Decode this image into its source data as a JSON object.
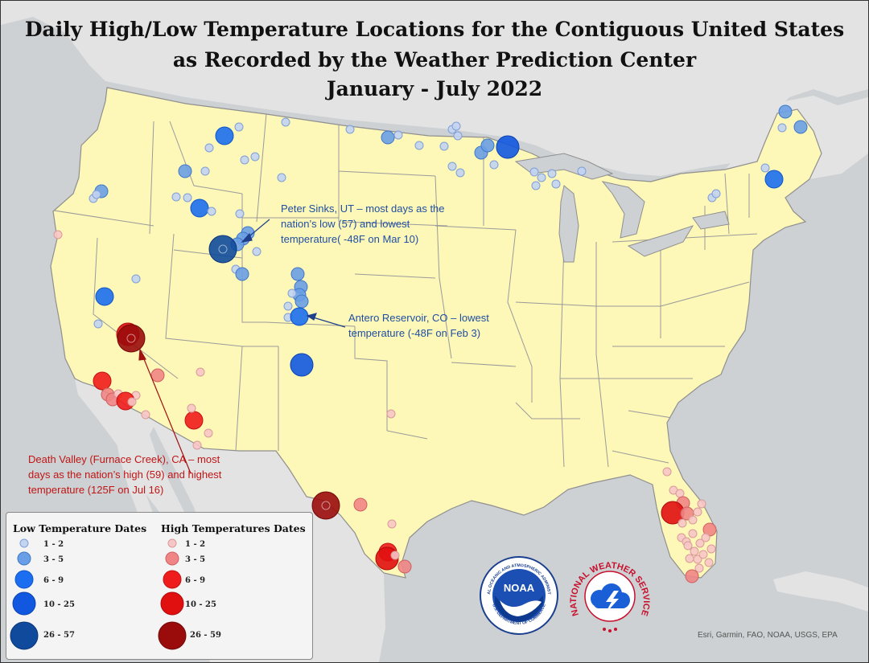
{
  "title": {
    "line1": "Daily High/Low Temperature Locations for the Contiguous United States",
    "line2": "as Recorded by the Weather Prediction Center",
    "line3": "January - July 2022"
  },
  "annotations": {
    "peter_sinks": [
      "Peter Sinks, UT – most days as the",
      "nation’s low (57) and lowest",
      "temperature( -48F on Mar 10)"
    ],
    "antero": [
      "Antero Reservoir, CO – lowest",
      "temperature (-48F on Feb 3)"
    ],
    "death_valley": [
      "Death Valley (Furnace Creek), CA – most",
      "days as the nation’s high (59) and highest",
      "temperature (125F on Jul 16)"
    ]
  },
  "legend": {
    "low_title": "Low Temperature Dates",
    "high_title": "High Temperatures Dates",
    "classes": [
      "1 - 2",
      "3 - 5",
      "6 - 9",
      "10 - 25",
      "26 - 57"
    ],
    "high_classes": [
      "1 - 2",
      "3 - 5",
      "6 - 9",
      "10 - 25",
      "26 - 59"
    ],
    "low_colors": [
      "#c3d3f2",
      "#6a9ee6",
      "#1c6ef0",
      "#1257e0",
      "#0f4a9c"
    ],
    "high_colors": [
      "#f7c7c7",
      "#ef8585",
      "#ee1c1c",
      "#e01010",
      "#9a0b0b"
    ]
  },
  "logos": {
    "noaa_ring": "NATIONAL OCEANIC AND ATMOSPHERIC ADMINISTRATION",
    "noaa_ring_bottom": "U.S. DEPARTMENT OF COMMERCE",
    "noaa_center": "NOAA",
    "nws_ring": "NATIONAL WEATHER SERVICE"
  },
  "credit": "Esri, Garmin, FAO, NOAA, USGS, EPA",
  "colors": {
    "land": "#fdf7b8",
    "water": "#cdd1d3",
    "ocean": "#c9cdd0",
    "neighbor": "#e3e3e3",
    "border": "#8f8f8f"
  }
}
